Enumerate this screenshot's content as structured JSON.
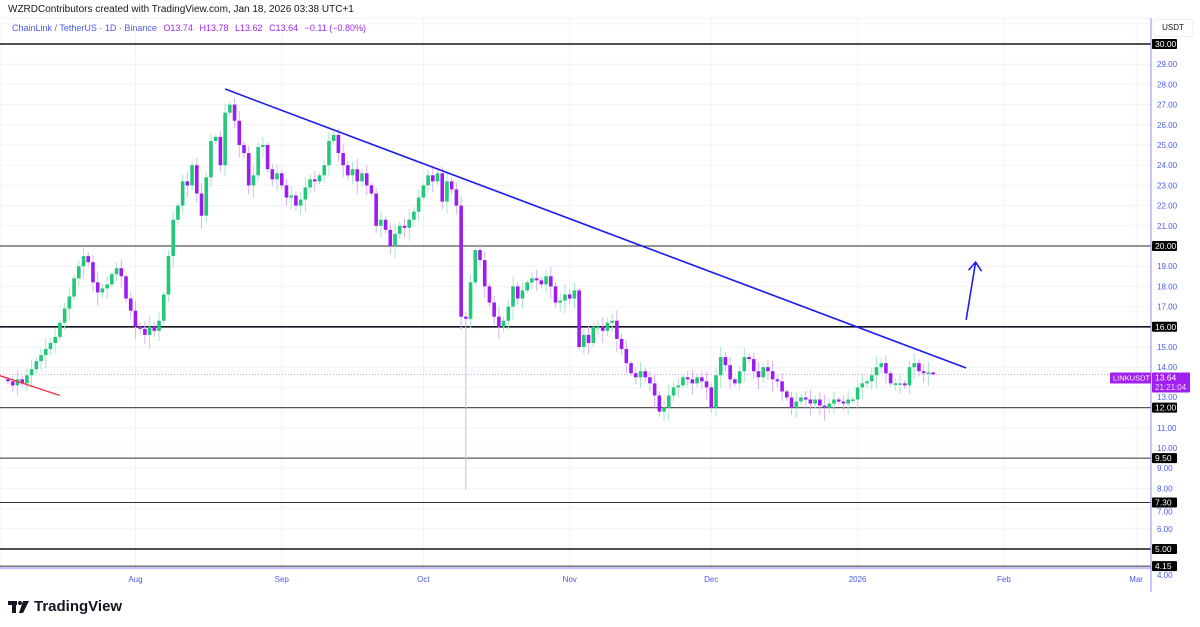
{
  "header": {
    "credit": "WZRDContributors created with TradingView.com, Jan 18, 2026 03:38 UTC+1",
    "symbol_title": "ChainLink / TetherUS · 1D · Binance",
    "open": "O13.74",
    "high": "H13.78",
    "low": "L13.62",
    "close": "C13.64",
    "change": "−0.11 (−0.80%)"
  },
  "currency_label": "USDT",
  "brand": "TradingView",
  "colors": {
    "up": "#22c77a",
    "down": "#9c1bf0",
    "axis_text": "#4a5cf0",
    "trendline": "#1c1cf0",
    "red_line": "#f23645",
    "price_tag": "#a020f0"
  },
  "chart_data": {
    "type": "candlestick",
    "symbol": "LINKUSDT",
    "interval": "1D",
    "start_date": "2025-07-05",
    "first_open": 13.4,
    "closes": [
      13.3,
      13.1,
      13.4,
      13.2,
      13.6,
      13.9,
      14.3,
      14.6,
      14.9,
      15.2,
      15.5,
      16.2,
      16.9,
      17.5,
      18.4,
      19.0,
      19.5,
      19.2,
      18.2,
      17.7,
      17.9,
      18.1,
      18.6,
      18.9,
      18.5,
      17.4,
      16.8,
      16.0,
      15.9,
      15.6,
      16.0,
      15.8,
      16.3,
      17.6,
      19.5,
      21.3,
      22.0,
      23.2,
      23.0,
      24.0,
      22.6,
      21.5,
      23.4,
      25.2,
      25.4,
      24.0,
      26.6,
      27.0,
      26.2,
      25.0,
      24.6,
      23.0,
      23.5,
      24.9,
      25.0,
      23.8,
      23.3,
      23.6,
      23.0,
      22.4,
      22.5,
      22.0,
      22.3,
      22.9,
      23.3,
      23.2,
      23.5,
      24.0,
      25.2,
      25.5,
      24.6,
      24.0,
      23.5,
      23.8,
      23.2,
      23.6,
      23.0,
      22.6,
      21.0,
      21.3,
      20.8,
      20.0,
      20.6,
      21.0,
      20.9,
      21.3,
      21.7,
      22.4,
      23.0,
      23.5,
      23.2,
      23.6,
      22.2,
      23.2,
      22.8,
      22.0,
      16.5,
      16.4,
      18.2,
      19.8,
      19.3,
      18.0,
      17.2,
      16.5,
      16.0,
      16.3,
      17.0,
      18.0,
      17.4,
      17.8,
      18.2,
      18.4,
      18.3,
      18.1,
      18.5,
      18.0,
      17.2,
      17.3,
      17.6,
      17.4,
      17.8,
      15.0,
      15.6,
      15.2,
      16.0,
      16.0,
      15.8,
      16.2,
      16.3,
      15.4,
      14.9,
      14.2,
      13.7,
      13.5,
      13.8,
      13.5,
      13.2,
      12.6,
      11.8,
      12.0,
      12.6,
      13.0,
      13.1,
      13.5,
      13.4,
      13.2,
      13.5,
      13.3,
      13.0,
      12.0,
      13.6,
      14.5,
      14.1,
      13.4,
      13.2,
      13.8,
      14.5,
      14.4,
      13.8,
      13.5,
      14.0,
      13.8,
      13.4,
      13.3,
      12.8,
      12.5,
      12.0,
      12.3,
      12.5,
      12.4,
      12.2,
      12.4,
      12.1,
      12.0,
      12.2,
      12.4,
      12.3,
      12.2,
      12.4,
      12.4,
      13.0,
      13.2,
      13.3,
      13.6,
      14.0,
      14.2,
      13.7,
      13.2,
      13.2,
      13.2,
      13.1,
      14.0,
      14.2,
      13.8,
      13.7,
      13.74,
      13.64
    ],
    "last_candle": {
      "open": 13.74,
      "high": 13.78,
      "low": 13.62,
      "close": 13.64
    },
    "notable_lows": [
      {
        "date": "2025-10-10",
        "low": 7.9
      }
    ],
    "ylim": [
      3.9,
      31.2
    ],
    "y_ticks": [
      "4.00",
      "5.00",
      "6.00",
      "7.00",
      "8.00",
      "9.00",
      "10.00",
      "11.00",
      "12.00",
      "13.00",
      "14.00",
      "15.00",
      "16.00",
      "17.00",
      "18.00",
      "19.00",
      "20.00",
      "21.00",
      "22.00",
      "23.00",
      "24.00",
      "25.00",
      "26.00",
      "27.00",
      "28.00",
      "29.00",
      "30.00"
    ],
    "x_ticks": [
      {
        "label": "Aug",
        "date": "2025-08-01"
      },
      {
        "label": "Sep",
        "date": "2025-09-01"
      },
      {
        "label": "Oct",
        "date": "2025-10-01"
      },
      {
        "label": "Nov",
        "date": "2025-11-01"
      },
      {
        "label": "Dec",
        "date": "2025-12-01"
      },
      {
        "label": "2026",
        "date": "2026-01-01"
      },
      {
        "label": "Feb",
        "date": "2026-02-01"
      },
      {
        "label": "Mar",
        "date": "2026-03-01"
      }
    ],
    "horizontal_levels": [
      {
        "price": 30.0,
        "label": "30.00",
        "weight": "heavy"
      },
      {
        "price": 20.0,
        "label": "20.00",
        "weight": "medium"
      },
      {
        "price": 16.0,
        "label": "16.00",
        "weight": "heavy"
      },
      {
        "price": 12.0,
        "label": "12.00",
        "weight": "medium"
      },
      {
        "price": 9.5,
        "label": "9.50",
        "weight": "light"
      },
      {
        "price": 7.3,
        "label": "7.30",
        "weight": "light"
      },
      {
        "price": 5.0,
        "label": "5.00",
        "weight": "heavy"
      },
      {
        "price": 4.15,
        "label": "4.15",
        "weight": "light"
      }
    ],
    "drawings": {
      "trendline": {
        "from": {
          "date": "2025-08-20",
          "price": 27.77
        },
        "to": {
          "date": "2026-01-24",
          "price": 13.96
        }
      },
      "red_line": {
        "from": {
          "date": "2025-07-03",
          "price": 13.6
        },
        "to": {
          "date": "2025-07-16",
          "price": 12.6
        }
      },
      "arrow": {
        "from": {
          "date": "2026-01-24",
          "price": 16.34
        },
        "to": {
          "date": "2026-01-26",
          "price": 19.2
        }
      }
    },
    "price_tag": {
      "symbol": "LINKUSDT",
      "price": "13.64",
      "countdown": "21:21:04",
      "value": 13.64
    }
  }
}
